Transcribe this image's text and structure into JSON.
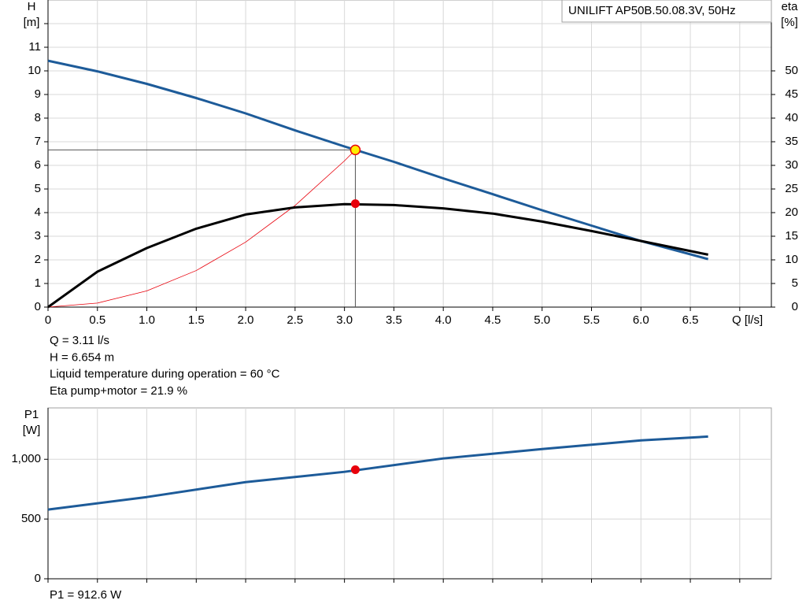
{
  "chart_data": [
    {
      "type": "line",
      "legend_box": "UNILIFT AP50B.50.08.3V, 50Hz",
      "y_label": "H",
      "y_unit": "[m]",
      "y2_label": "eta",
      "y2_unit": "[%]",
      "x_label": "Q [l/s]",
      "xlim": [
        0,
        7.32
      ],
      "ylim": [
        0,
        13
      ],
      "y2lim": [
        0,
        65
      ],
      "xticks": [
        0,
        0.5,
        {
          "value": 1,
          "label": "1.0"
        },
        1.5,
        {
          "value": 2,
          "label": "2.0"
        },
        2.5,
        {
          "value": 3,
          "label": "3.0"
        },
        3.5,
        {
          "value": 4,
          "label": "4.0"
        },
        4.5,
        {
          "value": 5,
          "label": "5.0"
        },
        5.5,
        {
          "value": 6,
          "label": "6.0"
        },
        6.5,
        {
          "value": 7,
          "label": null
        }
      ],
      "yticks": [
        0,
        1,
        2,
        3,
        4,
        5,
        6,
        7,
        8,
        9,
        10,
        11,
        {
          "value": 12,
          "label": null
        }
      ],
      "y2ticks": [
        0,
        5,
        10,
        15,
        20,
        25,
        30,
        35,
        40,
        45,
        50
      ],
      "grid": true,
      "series": [
        {
          "color": "#e8000b",
          "width": 0.8,
          "axis": "y",
          "x": [
            0,
            0.5,
            1,
            1.5,
            2,
            2.5,
            3,
            3.11
          ],
          "values": [
            0,
            0.172,
            0.688,
            1.548,
            2.752,
            4.3,
            6.192,
            6.654
          ]
        },
        {
          "color": "#1d5b99",
          "width": 3,
          "axis": "y",
          "x": [
            0,
            0.5,
            1,
            1.5,
            2,
            2.5,
            3,
            3.5,
            4,
            4.5,
            5,
            5.5,
            6,
            6.68
          ],
          "values": [
            10.43,
            9.98,
            9.45,
            8.85,
            8.2,
            7.48,
            6.8,
            6.15,
            5.45,
            4.78,
            4.1,
            3.45,
            2.8,
            2.03
          ]
        },
        {
          "color": "#000000",
          "width": 3,
          "axis": "y2",
          "x": [
            0,
            0.5,
            1,
            1.5,
            2,
            2.5,
            3,
            3.5,
            4,
            4.5,
            5,
            5.5,
            6,
            6.68
          ],
          "values": [
            0,
            7.5,
            12.5,
            16.6,
            19.6,
            21.1,
            21.8,
            21.6,
            20.9,
            19.8,
            18.1,
            16.1,
            14,
            11.1
          ]
        }
      ],
      "operating_point": {
        "q": 3.11,
        "h": 6.654,
        "eta": 21.9
      },
      "annotations": [
        "Q = 3.11 l/s",
        "H = 6.654 m",
        "Liquid temperature during operation = 60 °C",
        "Eta pump+motor = 21.9 %"
      ]
    },
    {
      "type": "line",
      "y_label": "P1",
      "y_unit": "[W]",
      "xlim": [
        0,
        7.32
      ],
      "ylim": [
        0,
        1430
      ],
      "xticks": [
        0,
        0.5,
        1,
        1.5,
        2,
        2.5,
        3,
        3.5,
        4,
        4.5,
        5,
        5.5,
        6,
        6.5,
        7
      ],
      "xtick_labels": false,
      "yticks": [
        0,
        500,
        {
          "value": 1000,
          "label": "1,000"
        }
      ],
      "grid": true,
      "series": [
        {
          "color": "#1d5b99",
          "width": 3,
          "axis": "y",
          "x": [
            0,
            1,
            2,
            3,
            4,
            5,
            6,
            6.68
          ],
          "values": [
            579,
            684,
            809,
            895,
            1007,
            1086,
            1158,
            1190
          ]
        }
      ],
      "operating_point": {
        "q": 3.11,
        "p1": 912.6
      },
      "annotations": [
        "P1 = 912.6 W"
      ]
    }
  ]
}
